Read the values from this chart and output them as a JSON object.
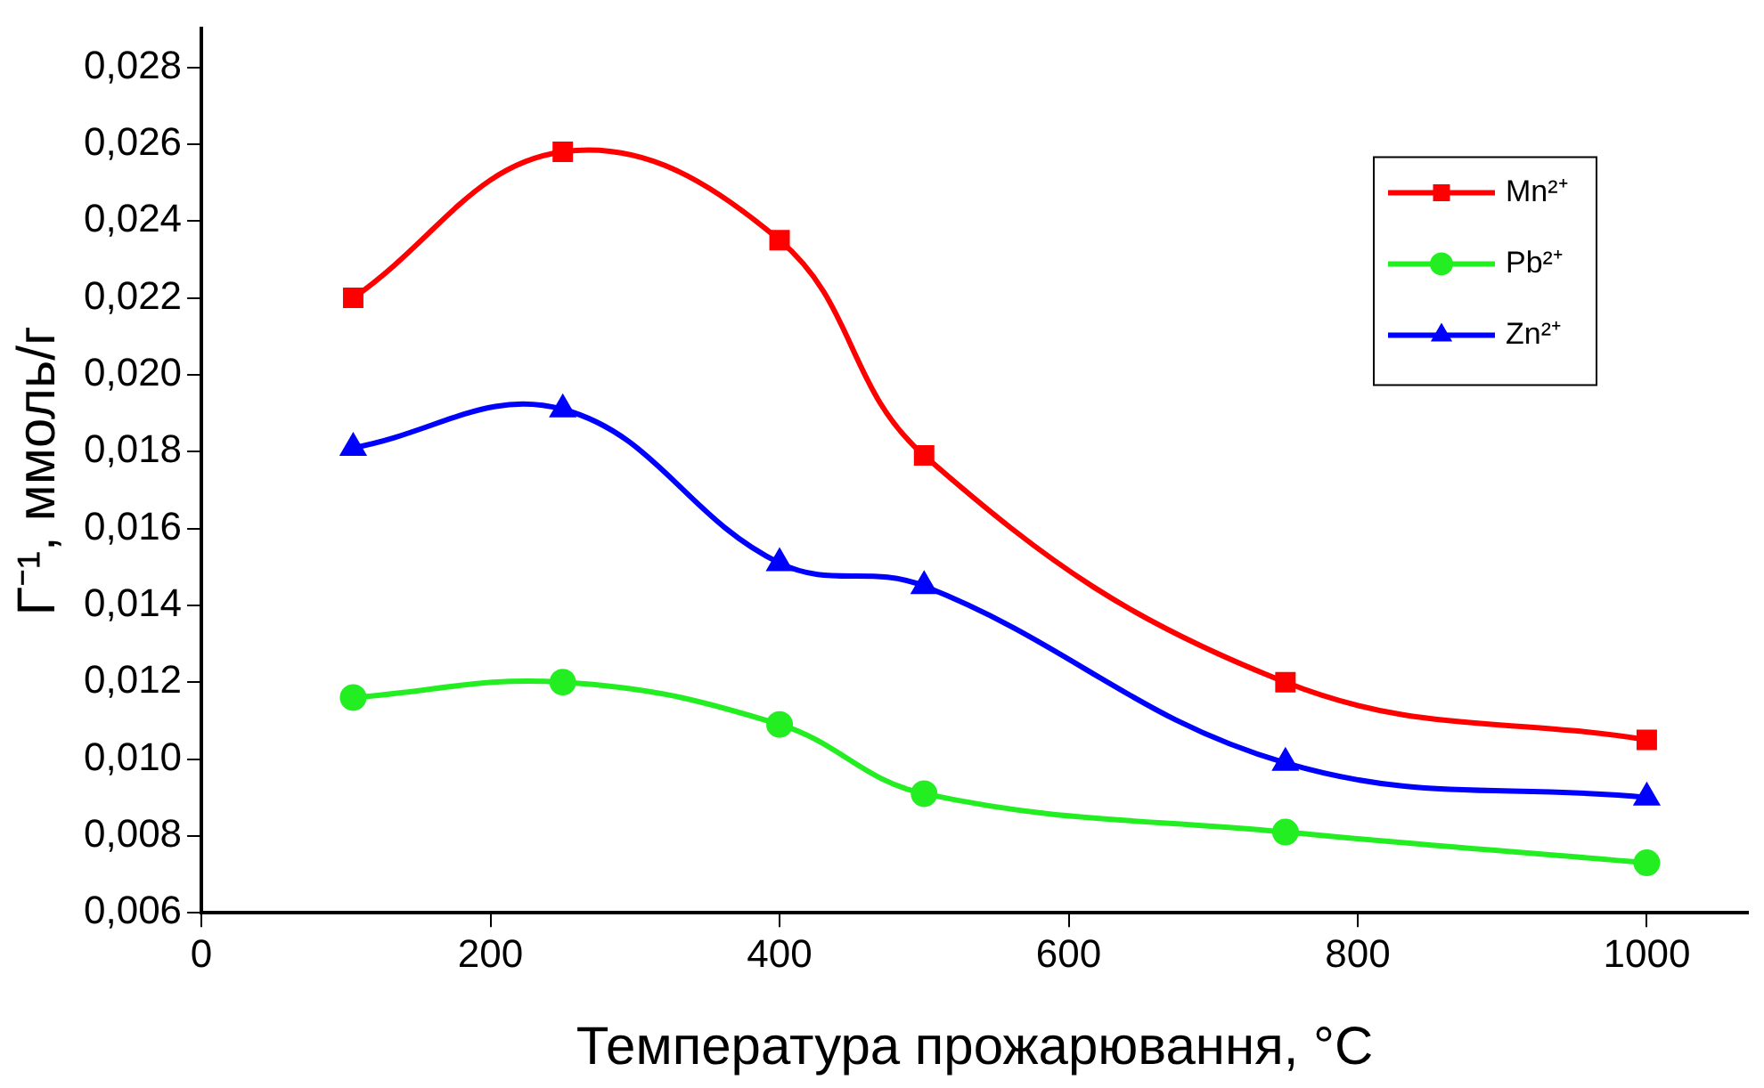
{
  "chart_data": {
    "type": "line",
    "xlabel": "Температура прожарювання, °C",
    "ylabel": "Г⁻¹, ммоль/г",
    "xlim": [
      0,
      1070
    ],
    "xticks": [
      0,
      200,
      400,
      600,
      800,
      1000
    ],
    "ylim": [
      0.006,
      0.029
    ],
    "yticks": [
      {
        "value": 0.006,
        "label": "0,006"
      },
      {
        "value": 0.008,
        "label": "0,008"
      },
      {
        "value": 0.01,
        "label": "0,010"
      },
      {
        "value": 0.012,
        "label": "0,012"
      },
      {
        "value": 0.014,
        "label": "0,014"
      },
      {
        "value": 0.016,
        "label": "0,016"
      },
      {
        "value": 0.018,
        "label": "0,018"
      },
      {
        "value": 0.02,
        "label": "0,020"
      },
      {
        "value": 0.022,
        "label": "0,022"
      },
      {
        "value": 0.024,
        "label": "0,024"
      },
      {
        "value": 0.026,
        "label": "0,026"
      },
      {
        "value": 0.028,
        "label": "0,028"
      }
    ],
    "grid": false,
    "legend": "top right",
    "line_style": "solid",
    "x": [
      105,
      250,
      400,
      500,
      750,
      1000
    ],
    "series": [
      {
        "name": "Mn²⁺",
        "color": "#ff0000",
        "marker": "square",
        "values": [
          0.022,
          0.0258,
          0.0235,
          0.0179,
          0.012,
          0.0105
        ]
      },
      {
        "name": "Pb²⁺",
        "color": "#22ee22",
        "marker": "circle",
        "values": [
          0.0116,
          0.012,
          0.0109,
          0.0091,
          0.0081,
          0.0073
        ]
      },
      {
        "name": "Zn²⁺",
        "color": "#0000ff",
        "marker": "triangle",
        "values": [
          0.0181,
          0.0191,
          0.0151,
          0.0145,
          0.0099,
          0.009
        ]
      }
    ]
  }
}
